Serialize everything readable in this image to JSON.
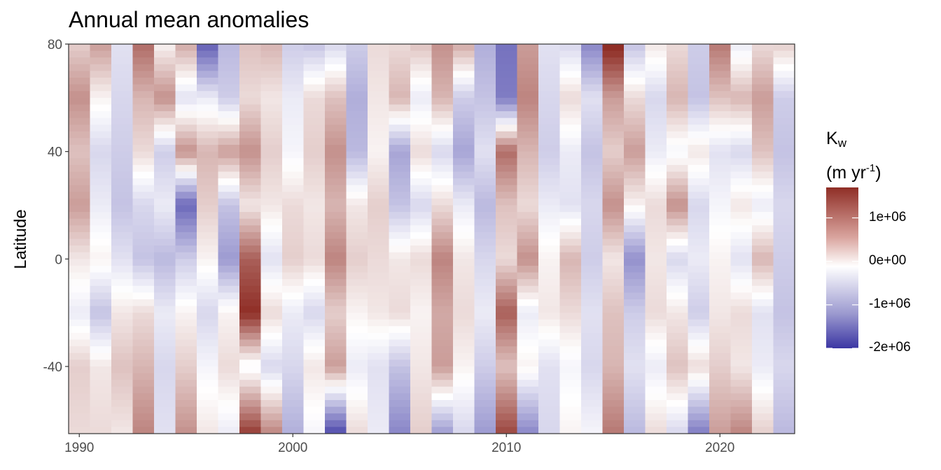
{
  "title": "Annual mean anomalies",
  "chart_data": {
    "type": "heatmap",
    "title": "Annual mean anomalies",
    "xlabel": "",
    "ylabel": "Latitude",
    "x_range": [
      1989.5,
      2023.5
    ],
    "y_range": [
      -65,
      80
    ],
    "x_ticks": [
      "1990",
      "2000",
      "2010",
      "2020"
    ],
    "y_ticks": [
      "80",
      "40",
      "0",
      "-40"
    ],
    "years": [
      1990,
      1991,
      1992,
      1993,
      1994,
      1995,
      1996,
      1997,
      1998,
      1999,
      2000,
      2001,
      2002,
      2003,
      2004,
      2005,
      2006,
      2007,
      2008,
      2009,
      2010,
      2011,
      2012,
      2013,
      2014,
      2015,
      2016,
      2017,
      2018,
      2019,
      2020,
      2021,
      2022,
      2023
    ],
    "bands": [
      80,
      60,
      40,
      20,
      0,
      -20,
      -40,
      -65
    ],
    "values": [
      [
        0.4,
        0.9,
        0.5,
        0.8,
        0.2,
        -0.2,
        0.4,
        0.3
      ],
      [
        0.8,
        0.1,
        -0.4,
        -0.2,
        0.1,
        -0.6,
        0.2,
        0.3
      ],
      [
        -0.3,
        -0.4,
        -0.5,
        -0.6,
        -0.3,
        0.2,
        0.5,
        0.2
      ],
      [
        1.2,
        0.6,
        0.3,
        -0.4,
        -0.6,
        0.3,
        0.6,
        1.0
      ],
      [
        0.1,
        0.9,
        -0.5,
        -0.2,
        -0.7,
        -0.2,
        -0.4,
        -0.3
      ],
      [
        0.7,
        -0.3,
        0.9,
        -1.5,
        -0.5,
        0.1,
        0.4,
        0.9
      ],
      [
        -1.6,
        -0.2,
        0.6,
        0.4,
        0.1,
        -0.4,
        -0.1,
        0.2
      ],
      [
        -0.7,
        -0.5,
        0.8,
        -0.6,
        -1.0,
        0.1,
        0.3,
        -0.2
      ],
      [
        0.5,
        0.3,
        0.9,
        0.2,
        1.3,
        1.7,
        -0.1,
        1.6
      ],
      [
        0.6,
        0.2,
        0.4,
        0.2,
        -0.3,
        0.3,
        -0.4,
        1.0
      ],
      [
        -0.5,
        -0.2,
        -0.1,
        0.3,
        0.4,
        -0.2,
        -0.4,
        -0.8
      ],
      [
        -0.6,
        0.3,
        0.4,
        0.2,
        0.3,
        -0.4,
        0.2,
        -0.1
      ],
      [
        -0.4,
        0.5,
        0.9,
        0.6,
        1.0,
        0.4,
        0.8,
        -1.8
      ],
      [
        -0.5,
        -0.8,
        -0.7,
        0.2,
        0.4,
        0.1,
        -0.2,
        0.3
      ],
      [
        0.3,
        0.2,
        0.1,
        0.4,
        0.3,
        0.2,
        -0.3,
        -0.2
      ],
      [
        0.3,
        0.6,
        -0.9,
        -0.6,
        0.2,
        0.3,
        -0.6,
        -1.2
      ],
      [
        0.5,
        -0.2,
        0.3,
        -0.4,
        0.3,
        0.1,
        0.2,
        0.4
      ],
      [
        0.9,
        0.6,
        -0.4,
        0.3,
        1.0,
        0.7,
        0.8,
        -1.0
      ],
      [
        0.7,
        -0.5,
        -0.9,
        -0.2,
        0.2,
        0.3,
        0.1,
        -0.4
      ],
      [
        -0.8,
        -0.6,
        -0.3,
        -0.7,
        -0.4,
        -0.2,
        -0.5,
        -1.0
      ],
      [
        -1.4,
        -1.3,
        1.2,
        0.5,
        0.3,
        1.3,
        0.5,
        1.5
      ],
      [
        0.8,
        1.0,
        0.6,
        0.3,
        0.9,
        -0.2,
        0.1,
        -1.2
      ],
      [
        -0.3,
        -0.4,
        -0.5,
        -0.2,
        0.1,
        0.2,
        -0.3,
        -0.4
      ],
      [
        -0.4,
        0.3,
        -0.2,
        -0.3,
        0.6,
        0.3,
        -0.1,
        0.1
      ],
      [
        -1.2,
        -0.3,
        -0.6,
        -0.4,
        -0.5,
        -0.3,
        -0.4,
        -0.1
      ],
      [
        1.8,
        0.8,
        0.4,
        0.9,
        0.2,
        0.5,
        0.6,
        1.1
      ],
      [
        -0.6,
        0.3,
        0.8,
        0.1,
        -1.1,
        -0.5,
        -0.3,
        -0.7
      ],
      [
        0.2,
        -0.4,
        -0.2,
        0.3,
        0.2,
        0.3,
        -0.2,
        0.3
      ],
      [
        0.3,
        0.6,
        -0.1,
        0.9,
        -0.4,
        0.2,
        0.5,
        -0.4
      ],
      [
        -0.5,
        -0.6,
        0.2,
        -0.4,
        -0.2,
        -0.5,
        0.3,
        -1.3
      ],
      [
        1.1,
        0.5,
        -0.3,
        -0.1,
        0.1,
        0.2,
        0.4,
        0.8
      ],
      [
        -0.2,
        0.6,
        -0.4,
        0.2,
        -0.3,
        0.3,
        0.2,
        1.0
      ],
      [
        0.3,
        0.8,
        0.5,
        -0.2,
        0.6,
        -0.3,
        -0.2,
        0.4
      ],
      [
        0.4,
        -0.5,
        -0.6,
        -0.4,
        -0.5,
        -0.6,
        -0.4,
        -0.7
      ]
    ],
    "colorbar": {
      "title": "Kw (m yr-1)",
      "title_main": "K",
      "title_sub": "w",
      "title_units_open": "(m yr",
      "title_units_sup": "-1",
      "title_units_close": ")",
      "ticks": [
        {
          "label": "1e+06",
          "value": 1000000
        },
        {
          "label": "0e+00",
          "value": 0
        },
        {
          "label": "-1e+06",
          "value": -1000000
        },
        {
          "label": "-2e+06",
          "value": -2000000
        }
      ],
      "range": [
        -2000000,
        1700000
      ],
      "low_color": "#3b36a3",
      "mid_color": "#ffffff",
      "high_color": "#8f2e26"
    }
  }
}
